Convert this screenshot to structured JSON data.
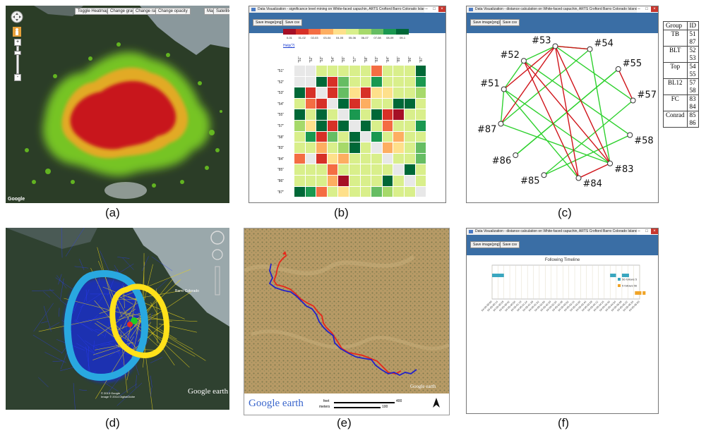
{
  "labels": [
    "(a)",
    "(b)",
    "(c)",
    "(d)",
    "(e)",
    "(f)"
  ],
  "panel_a": {
    "buttons": [
      "Toggle Heatmap",
      "Change gradient",
      "Change radius",
      "Change opacity"
    ],
    "map_type": [
      "Map",
      "Satellite"
    ],
    "attribution": "Google",
    "zoom_plus": "+",
    "zoom_minus": "-"
  },
  "panel_b": {
    "window_title": "Data Visualization - significance level mining on White-faced capuchin, ARTS Croftord Barro Colorado Island, Panama",
    "save_image": "Save image(png)",
    "save_csv": "Save csv",
    "legend_labels": [
      "0-01",
      "01-02",
      "02-03",
      "03-04",
      "04-05",
      "05-06",
      "06-07",
      "07-08",
      "08-09",
      "09-1"
    ],
    "legend_colors": [
      "#a50f26",
      "#d73027",
      "#f46d43",
      "#fdae61",
      "#fee08b",
      "#d9ef8b",
      "#a6d96a",
      "#66bd63",
      "#1a9850",
      "#006837"
    ],
    "help": "Help(?)",
    "ids": [
      "51",
      "52",
      "53",
      "54",
      "55",
      "57",
      "58",
      "83",
      "84",
      "85",
      "86",
      "87"
    ],
    "matrix": [
      [
        -1,
        -1,
        5,
        5,
        5,
        5,
        5,
        2,
        5,
        5,
        5,
        9
      ],
      [
        -1,
        -1,
        9,
        1,
        7,
        5,
        5,
        8,
        5,
        5,
        5,
        8
      ],
      [
        9,
        1,
        -1,
        1,
        7,
        4,
        1,
        4,
        4,
        5,
        5,
        6
      ],
      [
        5,
        2,
        1,
        -1,
        9,
        1,
        3,
        5,
        5,
        9,
        9,
        5
      ],
      [
        9,
        5,
        9,
        5,
        -1,
        8,
        5,
        9,
        1,
        0,
        5,
        5
      ],
      [
        6,
        4,
        9,
        1,
        9,
        -1,
        9,
        5,
        2,
        5,
        5,
        8
      ],
      [
        5,
        8,
        1,
        7,
        5,
        9,
        -1,
        8,
        5,
        3,
        5,
        5
      ],
      [
        5,
        5,
        3,
        5,
        6,
        9,
        5,
        -1,
        3,
        4,
        5,
        7
      ],
      [
        2,
        -1,
        1,
        4,
        3,
        5,
        5,
        5,
        -1,
        5,
        5,
        7
      ],
      [
        5,
        5,
        5,
        2,
        5,
        5,
        5,
        5,
        5,
        -1,
        9,
        5
      ],
      [
        5,
        5,
        5,
        3,
        0,
        5,
        5,
        5,
        9,
        5,
        -1,
        5
      ],
      [
        9,
        8,
        2,
        5,
        4,
        5,
        5,
        7,
        6,
        5,
        5,
        -1
      ]
    ]
  },
  "panel_c": {
    "window_title": "Data Visualization - distance calculation on White-faced capuchin, ARTS Croftord Barro Colorado Island, Panama",
    "save_image": "Save image(png)",
    "save_csv": "Save csv",
    "nodes": [
      "#54",
      "#55",
      "#57",
      "#58",
      "#83",
      "#84",
      "#85",
      "#86",
      "#87",
      "#51",
      "#52",
      "#53"
    ],
    "table_header": [
      "Group",
      "ID"
    ],
    "groups": [
      {
        "name": "TB",
        "ids": [
          "51",
          "87"
        ]
      },
      {
        "name": "BLT",
        "ids": [
          "52",
          "53"
        ]
      },
      {
        "name": "Top",
        "ids": [
          "54",
          "55"
        ]
      },
      {
        "name": "BL12",
        "ids": [
          "57",
          "58"
        ]
      },
      {
        "name": "FC",
        "ids": [
          "83",
          "84"
        ]
      },
      {
        "name": "Conrad",
        "ids": [
          "85",
          "86"
        ]
      }
    ]
  },
  "panel_d": {
    "place": "Barro Colorado",
    "logo": "Google earth",
    "copyright": "© 2013 Google\nImage © 2014 DigitalGlobe",
    "ring_colors": {
      "outer": "#29a8e0",
      "inner": "#ffe11a"
    }
  },
  "panel_e": {
    "logo": "Google earth",
    "small_logo": "Google earth",
    "scale_feet_label": "feet",
    "scale_meters_label": "meters",
    "scale_feet_value": "400",
    "scale_meters_value": "100",
    "track_colors": {
      "a": "#e8261a",
      "b": "#2222c8"
    }
  },
  "panel_f": {
    "window_title": "Data Visualization - distance calculation on White-faced capuchin, ARTS Croftord Barro Colorado Island, Panama",
    "save_image": "Save image(png)",
    "save_csv": "Save csv",
    "chart_title": "Following Timeline",
    "legend": [
      "56 follows 5",
      "5 follows 56"
    ],
    "legend_colors": [
      "#3aa6bf",
      "#f0a428"
    ],
    "ticks": [
      "04-05-00:00",
      "04-05-00:14",
      "04-05-00:28",
      "04-05-00:42",
      "04-05-00:56",
      "04-05-01:10",
      "04-05-01:24",
      "04-05-01:38",
      "04-05-01:52",
      "04-05-02:06",
      "04-05-02:20",
      "04-05-02:34",
      "04-05-02:48",
      "04-05-03:02",
      "04-05-03:16",
      "04-05-03:30",
      "04-05-03:44",
      "04-05-03:58",
      "04-05-04:12",
      "04-05-04:26",
      "04-05-04:40",
      "04-05-04:54",
      "04-05-05:08",
      "04-05-05:22",
      "04-05-05:36",
      "04-05-05:50"
    ]
  }
}
